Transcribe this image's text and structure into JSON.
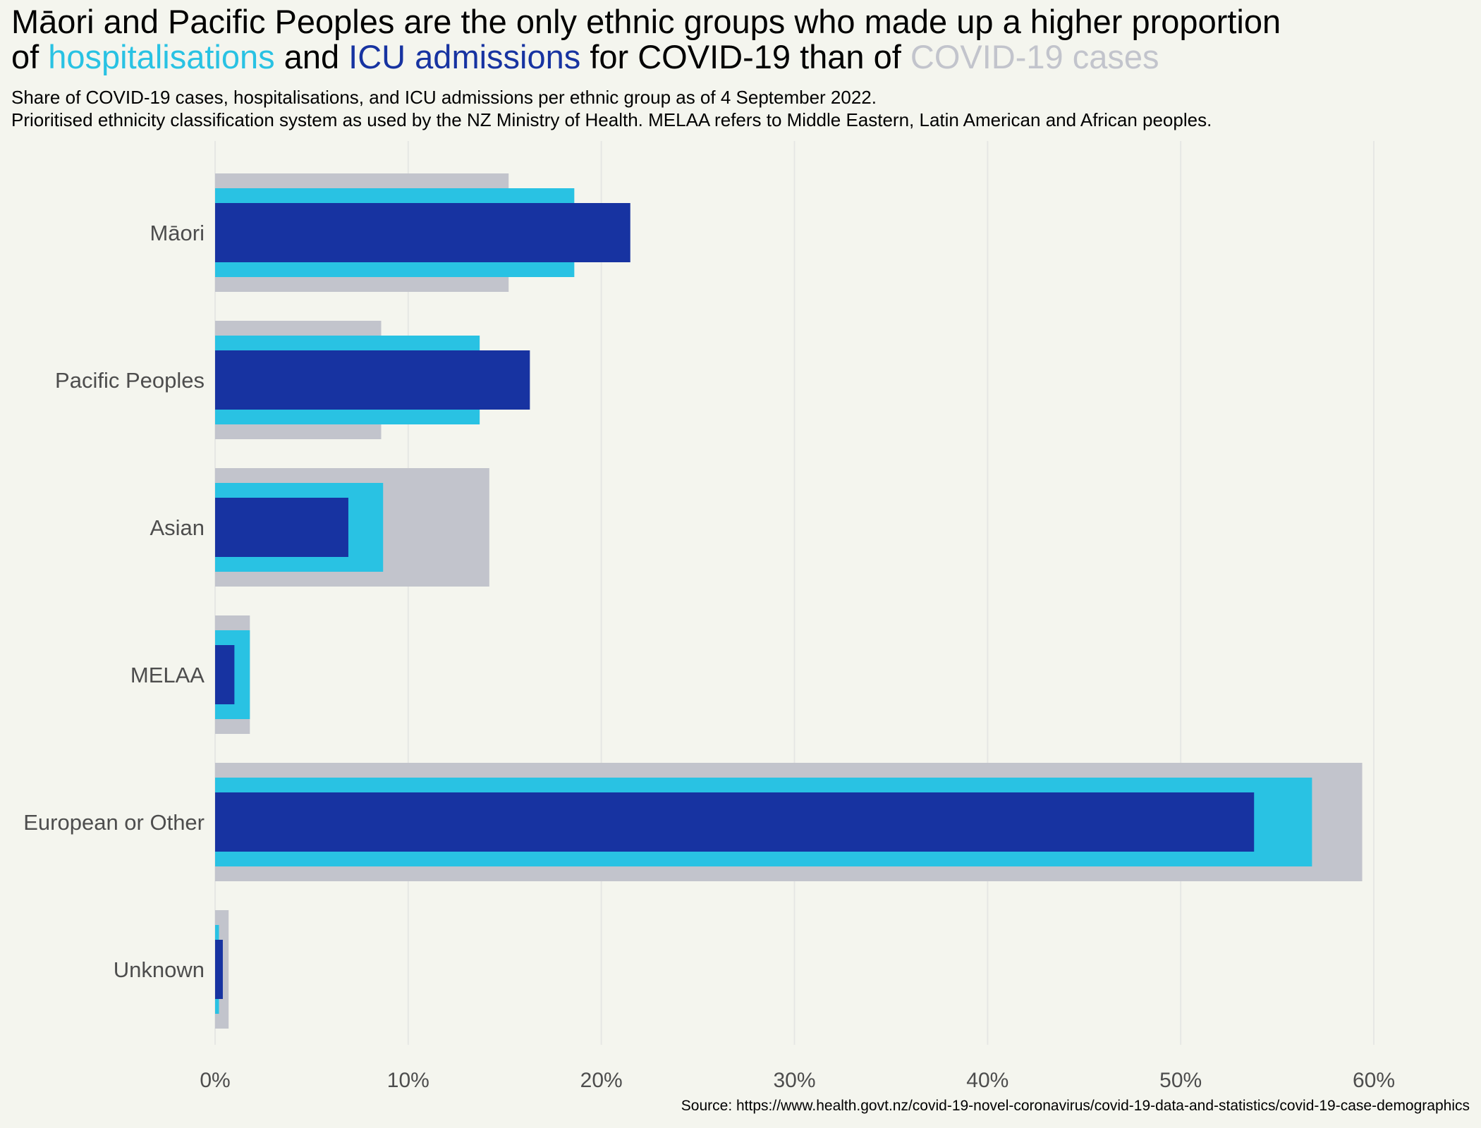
{
  "title": {
    "part1": "Māori and Pacific Peoples are the only ethnic groups who made up a higher proportion",
    "part2": "of",
    "hosp": "hospitalisations",
    "part3": "and",
    "icu": "ICU admissions",
    "part4": "for COVID-19 than of",
    "cases": "COVID-19 cases"
  },
  "subtitle": {
    "line1": "Share of COVID-19 cases, hospitalisations, and ICU admissions per ethnic group as of 4 September 2022.",
    "line2": "Prioritised ethnicity classification system as used by the NZ Ministry of Health. MELAA refers to Middle Eastern, Latin American and African peoples."
  },
  "source": "Source: https://www.health.govt.nz/covid-19-novel-coronavirus/covid-19-data-and-statistics/covid-19-case-demographics",
  "colors": {
    "background": "#f4f5ee",
    "cases": "#c2c4cc",
    "hospitalisations": "#29c2e3",
    "icu": "#1733a1",
    "grid": "#e6e7e4",
    "axis_text": "#4d4d4d"
  },
  "chart_data": {
    "type": "bar",
    "orientation": "horizontal",
    "categories": [
      "Māori",
      "Pacific Peoples",
      "Asian",
      "MELAA",
      "European or Other",
      "Unknown"
    ],
    "series": [
      {
        "name": "COVID-19 cases",
        "values": [
          15.2,
          8.6,
          14.2,
          1.8,
          59.4,
          0.7
        ]
      },
      {
        "name": "hospitalisations",
        "values": [
          18.6,
          13.7,
          8.7,
          1.8,
          56.8,
          0.2
        ]
      },
      {
        "name": "ICU admissions",
        "values": [
          21.5,
          16.3,
          6.9,
          1.0,
          53.8,
          0.4
        ]
      }
    ],
    "x_ticks": [
      "0%",
      "10%",
      "20%",
      "30%",
      "40%",
      "50%",
      "60%"
    ],
    "xlim": [
      0,
      60
    ],
    "unit": "%",
    "grid": "vertical"
  }
}
